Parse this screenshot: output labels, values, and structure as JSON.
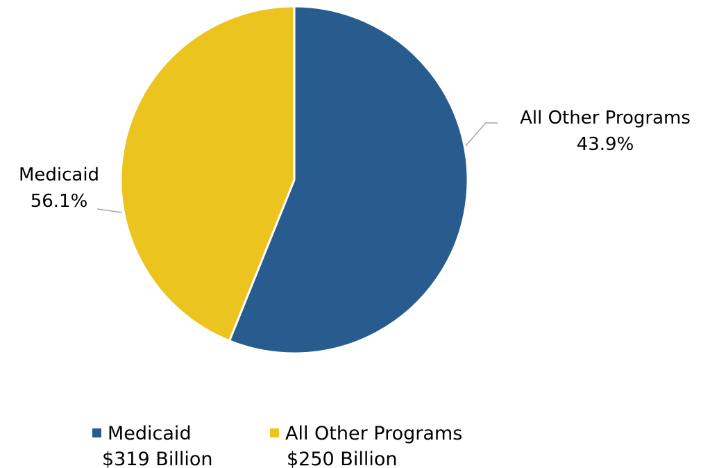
{
  "chart_data": {
    "type": "pie",
    "slices": [
      {
        "label": "Medicaid",
        "value": 56.1,
        "value_label": "56.1%",
        "amount": "$319 Billion",
        "color": "#285C8F"
      },
      {
        "label": "All Other Programs",
        "value": 43.9,
        "value_label": "43.9%",
        "amount": "$250 Billion",
        "color": "#EBC41F"
      }
    ],
    "legend_position": "bottom",
    "start_angle": "12 o'clock, clockwise"
  },
  "colors": {
    "slice_border": "#ffffff",
    "leader_line": "#a6a6a6"
  }
}
